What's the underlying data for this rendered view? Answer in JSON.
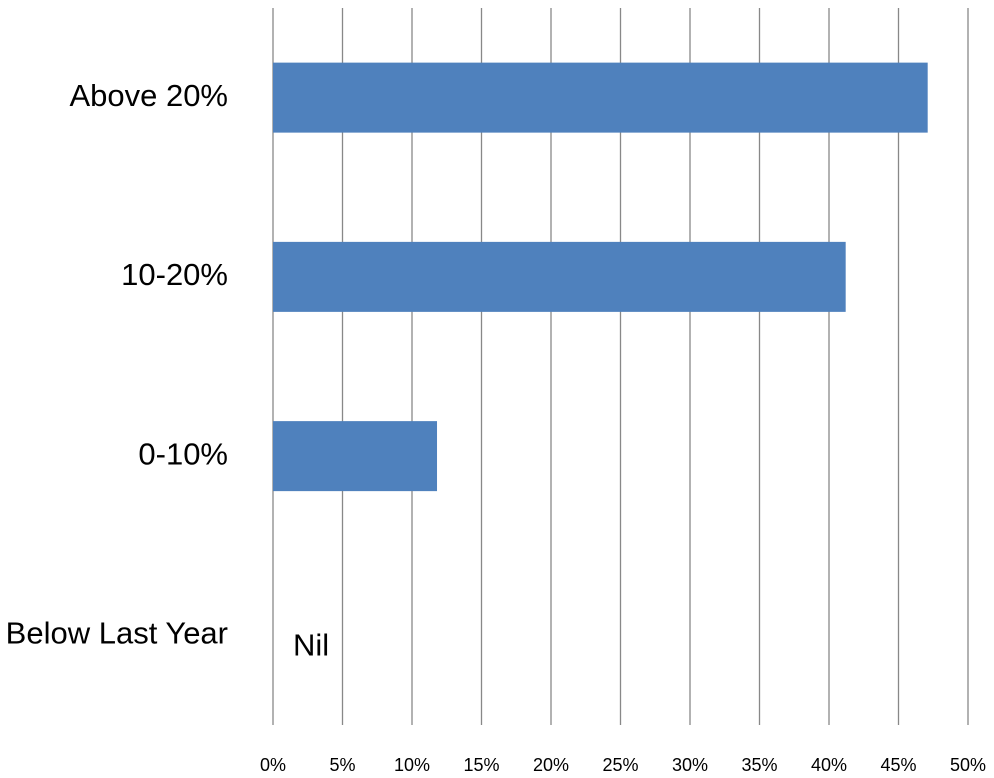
{
  "chart_data": {
    "type": "bar",
    "orientation": "horizontal",
    "categories": [
      "Above 20%",
      "10-20%",
      "0-10%",
      "Below Last Year"
    ],
    "values": [
      47.1,
      41.2,
      11.8,
      0
    ],
    "value_labels": [
      null,
      null,
      null,
      "Nil"
    ],
    "color": "#4f81bd",
    "xlim": [
      0,
      50
    ],
    "xticks": [
      {
        "value": 0,
        "label": "0%"
      },
      {
        "value": 5,
        "label": "5%"
      },
      {
        "value": 10,
        "label": "10%"
      },
      {
        "value": 15,
        "label": "15%"
      },
      {
        "value": 20,
        "label": "20%"
      },
      {
        "value": 25,
        "label": "25%"
      },
      {
        "value": 30,
        "label": "30%"
      },
      {
        "value": 35,
        "label": "35%"
      },
      {
        "value": 40,
        "label": "40%"
      },
      {
        "value": 45,
        "label": "45%"
      },
      {
        "value": 50,
        "label": "50%"
      }
    ],
    "grid": true
  }
}
